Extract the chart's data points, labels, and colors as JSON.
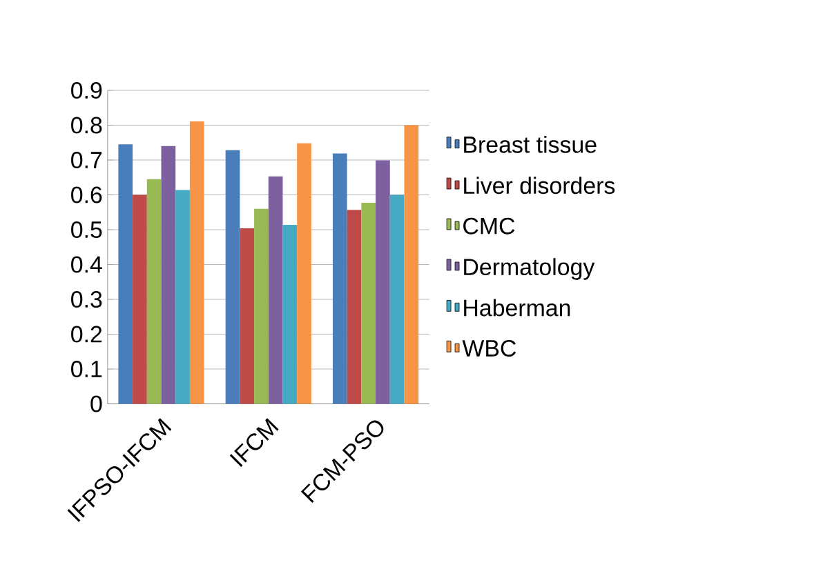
{
  "chart_data": {
    "type": "bar",
    "categories": [
      "IFPSO-IFCM",
      "IFCM",
      "FCM-PSO"
    ],
    "series": [
      {
        "name": "Breast tissue",
        "color": "#4a7ebb",
        "values": [
          0.745,
          0.728,
          0.719
        ]
      },
      {
        "name": "Liver disorders",
        "color": "#be4b48",
        "values": [
          0.6,
          0.504,
          0.557
        ]
      },
      {
        "name": "CMC",
        "color": "#98b954",
        "values": [
          0.645,
          0.56,
          0.577
        ]
      },
      {
        "name": "Dermatology",
        "color": "#7d60a0",
        "values": [
          0.74,
          0.653,
          0.699
        ]
      },
      {
        "name": "Haberman",
        "color": "#46aac5",
        "values": [
          0.614,
          0.514,
          0.6
        ]
      },
      {
        "name": "WBC",
        "color": "#f69545",
        "values": [
          0.811,
          0.748,
          0.8
        ]
      }
    ],
    "ylim": [
      0,
      0.9
    ],
    "yticks": [
      0,
      0.1,
      0.2,
      0.3,
      0.4,
      0.5,
      0.6,
      0.7,
      0.8,
      0.9
    ],
    "grid": "y",
    "legend": "right"
  }
}
